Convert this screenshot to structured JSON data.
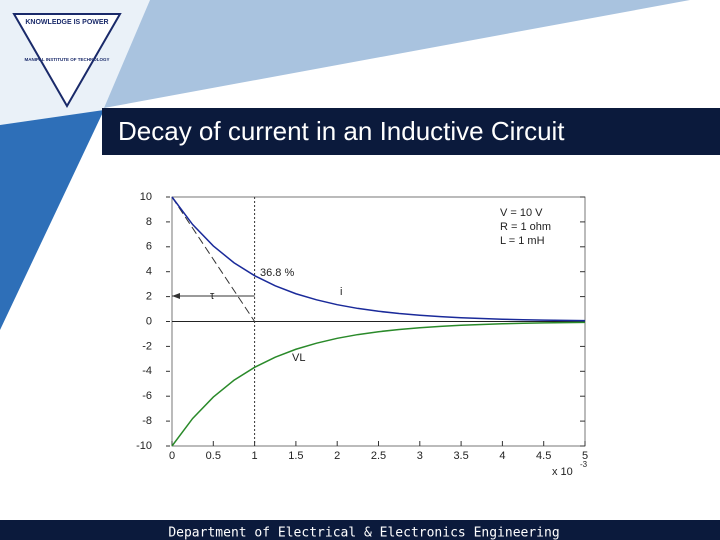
{
  "slide": {
    "title": "Decay of current in an Inductive Circuit",
    "footer": "Department of Electrical & Electronics Engineering",
    "logo": {
      "motto": "KNOWLEDGE IS POWER",
      "institute": "MANIPAL INSTITUTE OF TECHNOLOGY"
    }
  },
  "chart_data": {
    "type": "line",
    "x": [
      0,
      0.25,
      0.5,
      0.75,
      1,
      1.25,
      1.5,
      1.75,
      2,
      2.25,
      2.5,
      2.75,
      3,
      3.25,
      3.5,
      3.75,
      4,
      4.25,
      4.5,
      4.75,
      5
    ],
    "series": [
      {
        "name": "i",
        "color": "#1a2a9a",
        "values": [
          10,
          7.79,
          6.07,
          4.72,
          3.68,
          2.87,
          2.23,
          1.74,
          1.35,
          1.05,
          0.82,
          0.64,
          0.5,
          0.39,
          0.3,
          0.24,
          0.18,
          0.14,
          0.11,
          0.09,
          0.07
        ]
      },
      {
        "name": "VL",
        "color": "#2a8a2a",
        "values": [
          -10,
          -7.79,
          -6.07,
          -4.72,
          -3.68,
          -2.87,
          -2.23,
          -1.74,
          -1.35,
          -1.05,
          -0.82,
          -0.64,
          -0.5,
          -0.39,
          -0.3,
          -0.24,
          -0.18,
          -0.14,
          -0.11,
          -0.09,
          -0.07
        ]
      }
    ],
    "xlim": [
      0,
      5
    ],
    "xticks": [
      0,
      0.5,
      1,
      1.5,
      2,
      2.5,
      3,
      3.5,
      4,
      4.5,
      5
    ],
    "ylim": [
      -10,
      10
    ],
    "yticks": [
      -10,
      -8,
      -6,
      -4,
      -2,
      0,
      2,
      4,
      6,
      8,
      10
    ],
    "x_multiplier": "x 10",
    "x_multiplier_exp": "-3",
    "tau": 1,
    "annotations": [
      "V = 10 V",
      "R = 1 ohm",
      "L = 1 mH",
      "36.8 %",
      "τ"
    ]
  }
}
